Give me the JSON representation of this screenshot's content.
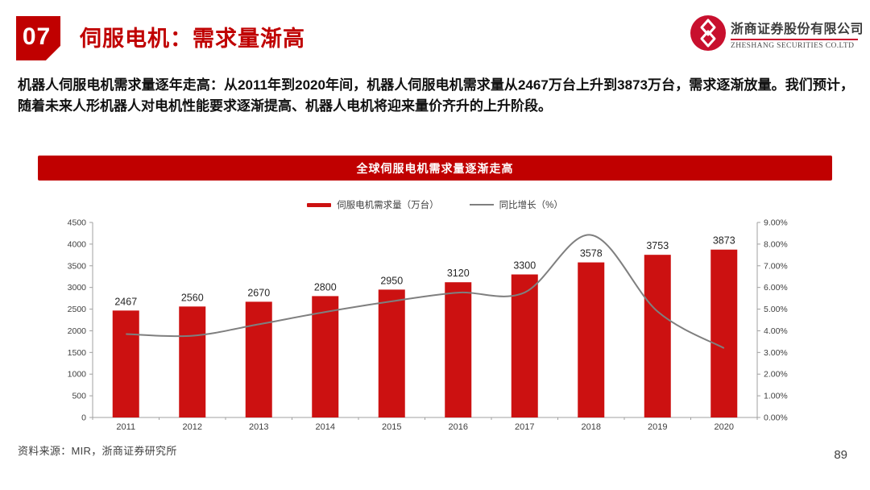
{
  "header": {
    "section_number": "07",
    "title": "伺服电机：需求量渐高"
  },
  "logo": {
    "company_cn": "浙商证券股份有限公司",
    "company_en": "ZHESHANG SECURITIES CO.LTD"
  },
  "body": {
    "paragraph": "机器人伺服电机需求量逐年走高：从2011年到2020年间，机器人伺服电机需求量从2467万台上升到3873万台，需求逐渐放量。我们预计，随着未来人形机器人对电机性能要求逐渐提高、机器人电机将迎来量价齐升的上升阶段。"
  },
  "chart_banner": {
    "title": "全球伺服电机需求量逐渐走高"
  },
  "chart_data": {
    "type": "bar",
    "title": "全球伺服电机需求量逐渐走高",
    "categories": [
      "2011",
      "2012",
      "2013",
      "2014",
      "2015",
      "2016",
      "2017",
      "2018",
      "2019",
      "2020"
    ],
    "series": [
      {
        "name": "伺服电机需求量（万台）",
        "type": "bar",
        "axis": "left",
        "color": "#CC1111",
        "values": [
          2467,
          2560,
          2670,
          2800,
          2950,
          3120,
          3300,
          3578,
          3753,
          3873
        ]
      },
      {
        "name": "同比增长（%）",
        "type": "line",
        "axis": "right",
        "color": "#7F7F7F",
        "values": [
          3.85,
          3.77,
          4.3,
          4.87,
          5.36,
          5.76,
          5.77,
          8.42,
          4.89,
          3.2
        ]
      }
    ],
    "left_axis": {
      "min": 0,
      "max": 4500,
      "step": 500
    },
    "right_axis": {
      "min": 0,
      "max": 9,
      "step": 1,
      "suffix": "%",
      "decimals": 2
    },
    "legend_position": "top",
    "grid": false,
    "bar_labels_shown": true
  },
  "footer": {
    "source": "资料来源：MIR，浙商证券研究所",
    "page_number": "89"
  },
  "colors": {
    "accent_red": "#C00000",
    "bar_red": "#CC1111",
    "line_gray": "#7F7F7F",
    "logo_red": "#C8102E",
    "axis_gray": "#A0A0A0",
    "text_dark": "#404040"
  }
}
